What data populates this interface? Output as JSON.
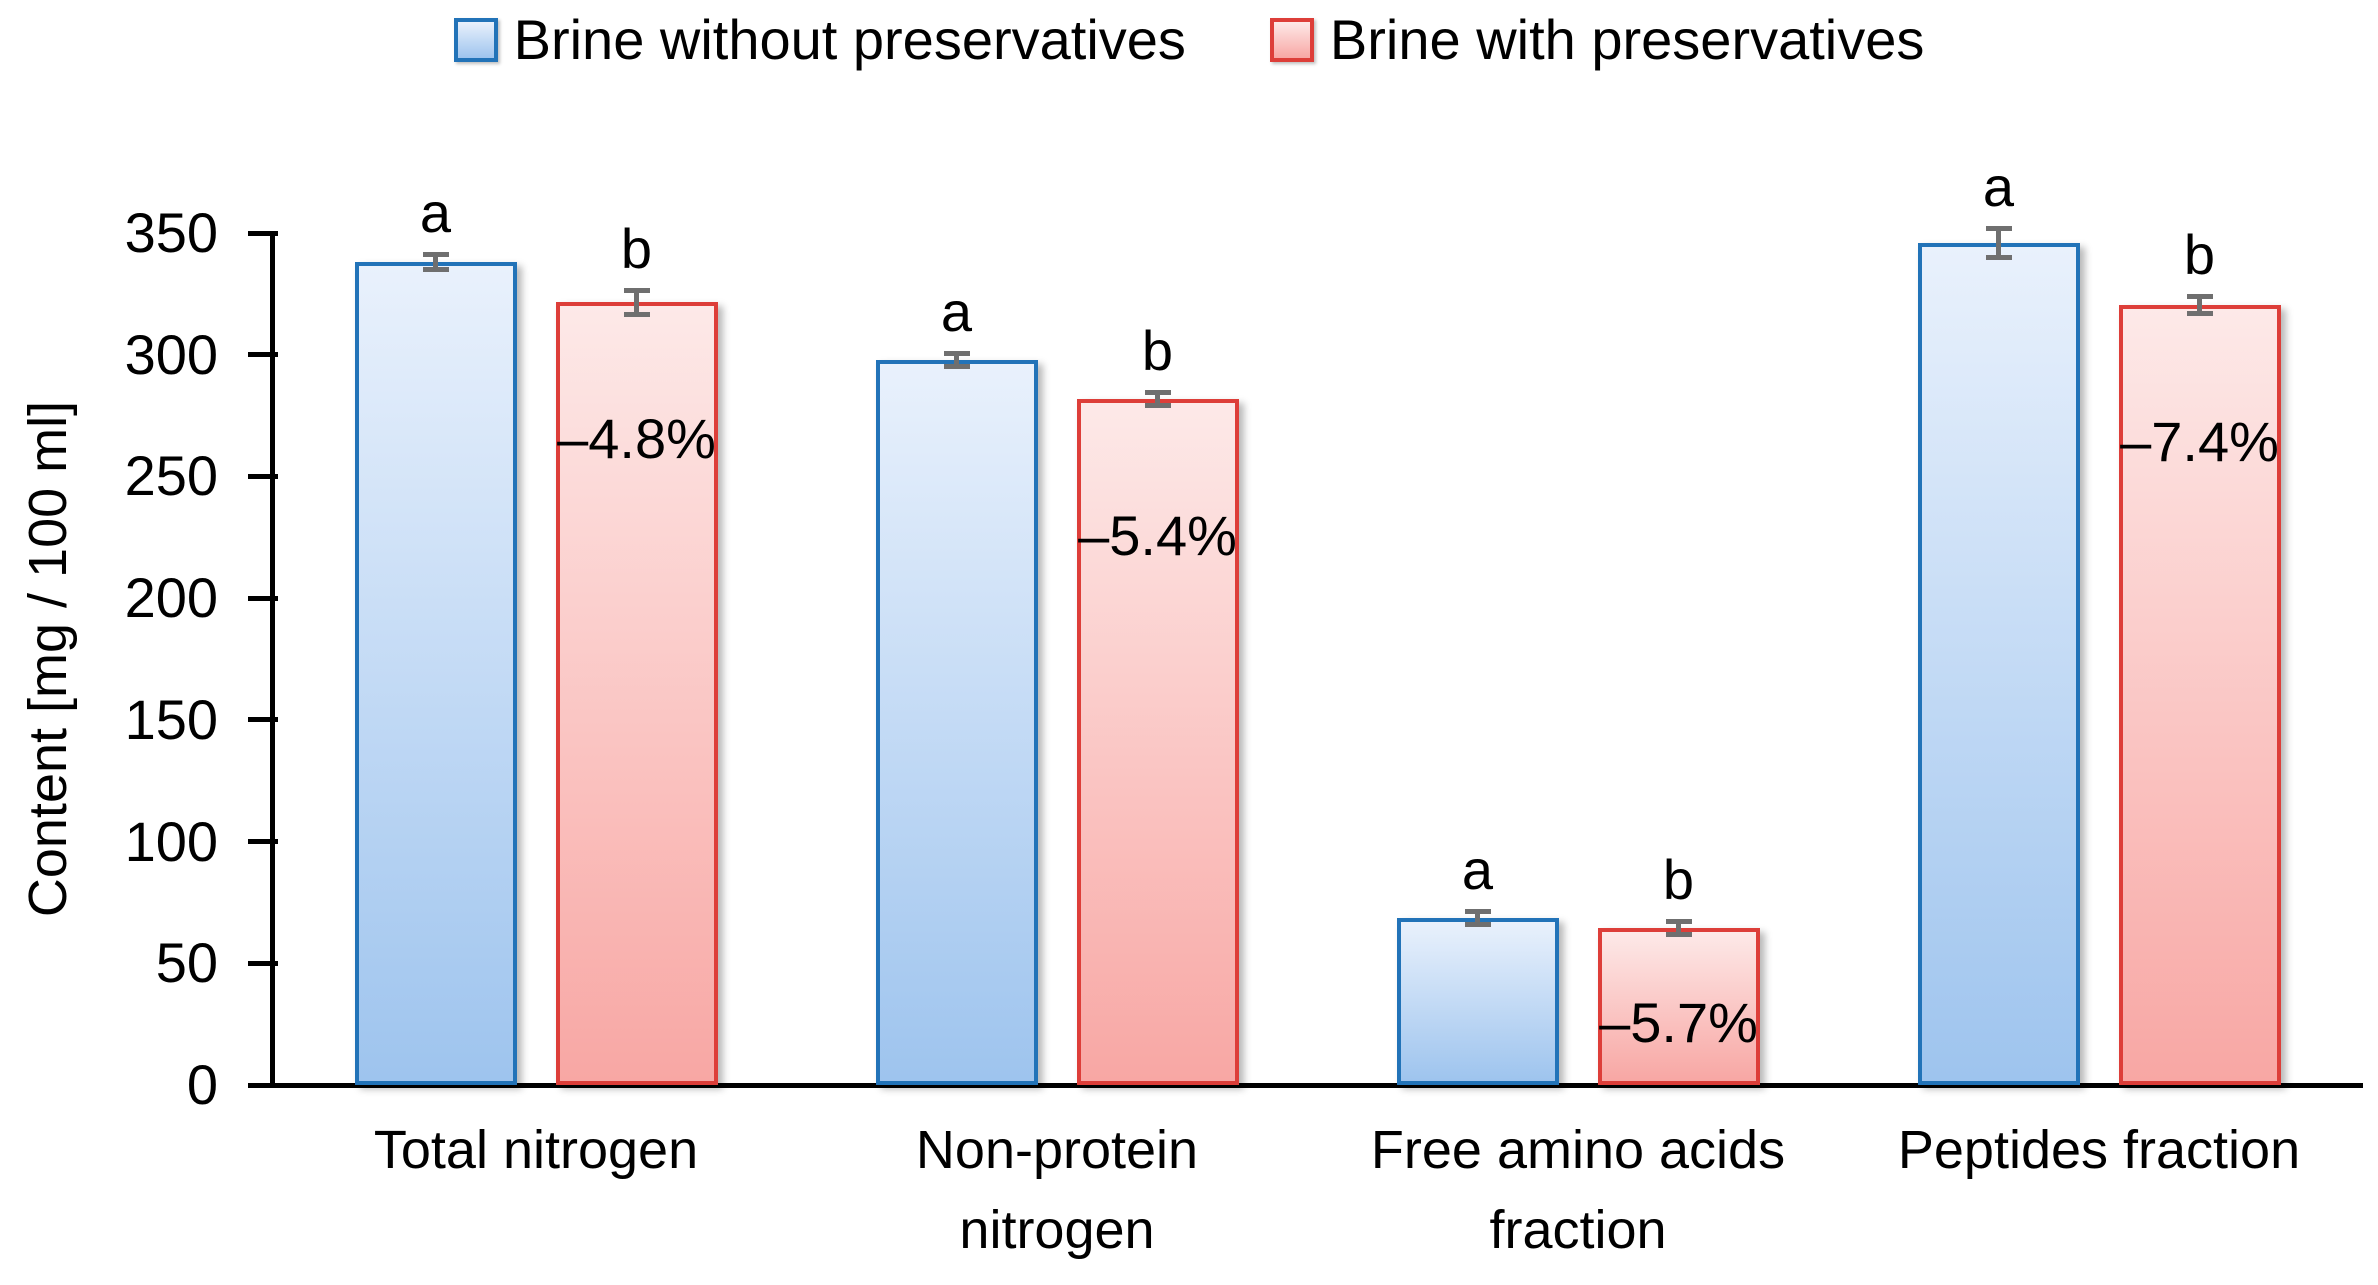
{
  "chart_data": {
    "type": "bar",
    "title": "",
    "ylabel": "Content [mg / 100 ml]",
    "ylim": [
      0,
      350
    ],
    "ytick_step": 50,
    "ytick_labels": [
      "350",
      "300",
      "250",
      "200",
      "150",
      "100",
      "50",
      "0"
    ],
    "grid": false,
    "legend_position": "top-center",
    "categories": [
      "Total nitrogen",
      "Non-protein nitrogen",
      "Free amino acids fraction",
      "Peptides fraction"
    ],
    "category_label_lines": [
      [
        "Total nitrogen"
      ],
      [
        "Non-protein",
        "nitrogen"
      ],
      [
        "Free amino acids",
        "fraction"
      ],
      [
        "Peptides fraction"
      ]
    ],
    "series": [
      {
        "name": "Brine without preservatives",
        "values": [
          338,
          298,
          68.5,
          346
        ],
        "errors": [
          2,
          1,
          1,
          5
        ],
        "sig_letters": [
          "a",
          "a",
          "a",
          "a"
        ]
      },
      {
        "name": "Brine with preservatives",
        "values": [
          321.5,
          282,
          64.6,
          320.5
        ],
        "errors": [
          4,
          1,
          1,
          2.5
        ],
        "sig_letters": [
          "b",
          "b",
          "b",
          "b"
        ],
        "delta_labels": [
          "–4.8%",
          "–5.4%",
          "–5.7%",
          "–7.4%"
        ]
      }
    ]
  },
  "colors": {
    "series_without": {
      "border": "#2273B8",
      "fill_top": "#E9F1FC",
      "fill_bottom": "#9EC4EE"
    },
    "series_with": {
      "border": "#DD3E39",
      "fill_top": "#FDE9E8",
      "fill_bottom": "#F8A7A4"
    },
    "error_gray": "#6F6F6F",
    "axis_black": "#000000",
    "text_black": "#000000"
  }
}
